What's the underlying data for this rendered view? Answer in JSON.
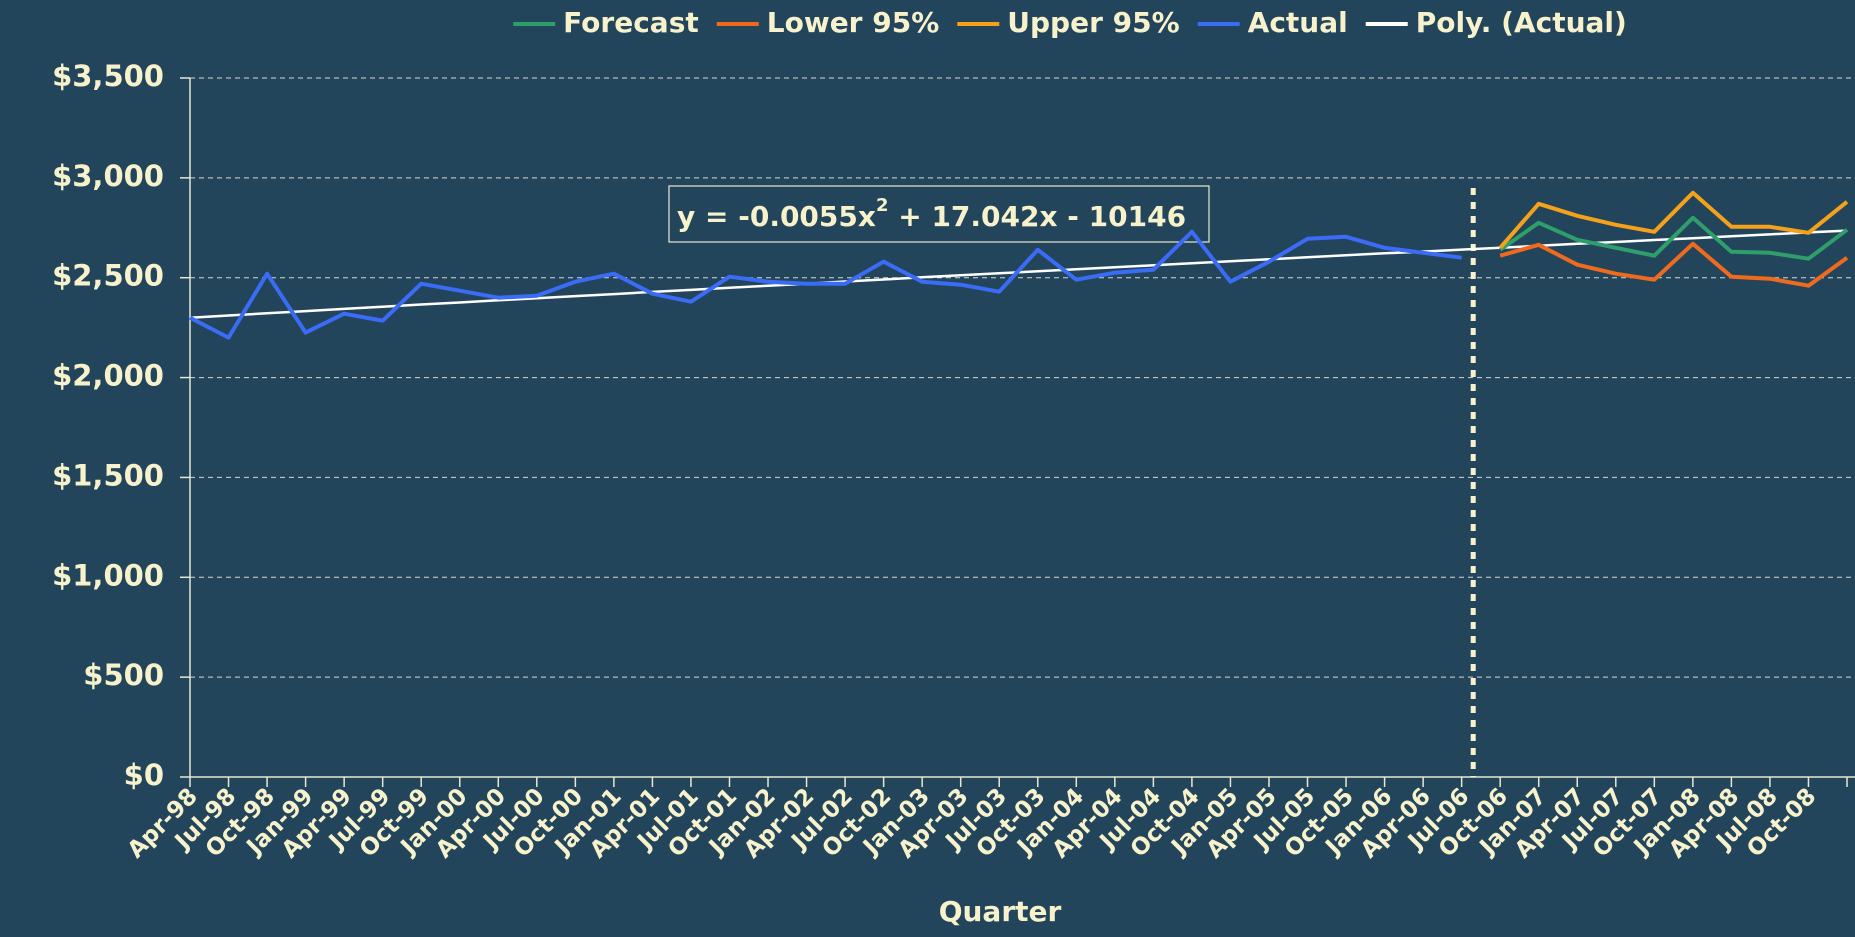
{
  "chart_data": {
    "type": "line",
    "x_label": "Quarter",
    "annotation": [
      "y = -0.0055x",
      "2",
      " + 17.042x - 10146"
    ],
    "categories": [
      "Apr-98",
      "Jul-98",
      "Oct-98",
      "Jan-99",
      "Apr-99",
      "Jul-99",
      "Oct-99",
      "Jan-00",
      "Apr-00",
      "Jul-00",
      "Oct-00",
      "Jan-01",
      "Apr-01",
      "Jul-01",
      "Oct-01",
      "Jan-02",
      "Apr-02",
      "Jul-02",
      "Oct-02",
      "Jan-03",
      "Apr-03",
      "Jul-03",
      "Oct-03",
      "Jan-04",
      "Apr-04",
      "Jul-04",
      "Oct-04",
      "Jan-05",
      "Apr-05",
      "Jul-05",
      "Oct-05",
      "Jan-06",
      "Apr-06",
      "Jul-06",
      "Oct-06",
      "Jan-07",
      "Apr-07",
      "Jul-07",
      "Oct-07",
      "Jan-08",
      "Apr-08",
      "Jul-08",
      "Oct-08",
      null
    ],
    "series": [
      {
        "name": "Forecast",
        "color": "#2e9e6b",
        "values": [
          null,
          null,
          null,
          null,
          null,
          null,
          null,
          null,
          null,
          null,
          null,
          null,
          null,
          null,
          null,
          null,
          null,
          null,
          null,
          null,
          null,
          null,
          null,
          null,
          null,
          null,
          null,
          null,
          null,
          null,
          null,
          null,
          null,
          null,
          2640,
          2775,
          2690,
          2650,
          2610,
          2800,
          2630,
          2625,
          2595,
          2740
        ]
      },
      {
        "name": "Lower 95%",
        "color": "#f06a1e",
        "values": [
          null,
          null,
          null,
          null,
          null,
          null,
          null,
          null,
          null,
          null,
          null,
          null,
          null,
          null,
          null,
          null,
          null,
          null,
          null,
          null,
          null,
          null,
          null,
          null,
          null,
          null,
          null,
          null,
          null,
          null,
          null,
          null,
          null,
          null,
          2610,
          2665,
          2565,
          2520,
          2490,
          2670,
          2505,
          2495,
          2460,
          2600
        ]
      },
      {
        "name": "Upper 95%",
        "color": "#f5a21a",
        "values": [
          null,
          null,
          null,
          null,
          null,
          null,
          null,
          null,
          null,
          null,
          null,
          null,
          null,
          null,
          null,
          null,
          null,
          null,
          null,
          null,
          null,
          null,
          null,
          null,
          null,
          null,
          null,
          null,
          null,
          null,
          null,
          null,
          null,
          null,
          2650,
          2870,
          2810,
          2765,
          2730,
          2925,
          2755,
          2755,
          2725,
          2880
        ]
      },
      {
        "name": "Actual",
        "color": "#3a6cf5",
        "values": [
          2300,
          2200,
          2520,
          2225,
          2320,
          2285,
          2470,
          2435,
          2400,
          2410,
          2480,
          2520,
          2420,
          2380,
          2505,
          2480,
          2470,
          2470,
          2580,
          2480,
          2465,
          2430,
          2640,
          2490,
          2525,
          2540,
          2730,
          2480,
          2580,
          2695,
          2705,
          2650,
          2625,
          2600,
          null,
          null,
          null,
          null,
          null,
          null,
          null,
          null,
          null,
          null
        ]
      },
      {
        "name": "Poly. (Actual)",
        "color": "#ffffff",
        "values": [
          2300,
          2311,
          2322,
          2333,
          2344,
          2355,
          2366,
          2376,
          2387,
          2397,
          2408,
          2418,
          2429,
          2439,
          2450,
          2460,
          2470,
          2481,
          2491,
          2502,
          2512,
          2522,
          2532,
          2542,
          2552,
          2562,
          2572,
          2582,
          2592,
          2602,
          2612,
          2622,
          2631,
          2641,
          2650,
          2660,
          2670,
          2679,
          2689,
          2698,
          2708,
          2717,
          2727,
          2736
        ]
      }
    ],
    "ylim": [
      0,
      3500
    ],
    "yticks": [
      {
        "value": 0,
        "label": "$0"
      },
      {
        "value": 500,
        "label": "$500"
      },
      {
        "value": 1000,
        "label": "$1,000"
      },
      {
        "value": 1500,
        "label": "$1,500"
      },
      {
        "value": 2000,
        "label": "$2,000"
      },
      {
        "value": 2500,
        "label": "$2,500"
      },
      {
        "value": 3000,
        "label": "$3,000"
      },
      {
        "value": 3500,
        "label": "$3,500"
      }
    ],
    "grid": true,
    "legend": "top"
  }
}
